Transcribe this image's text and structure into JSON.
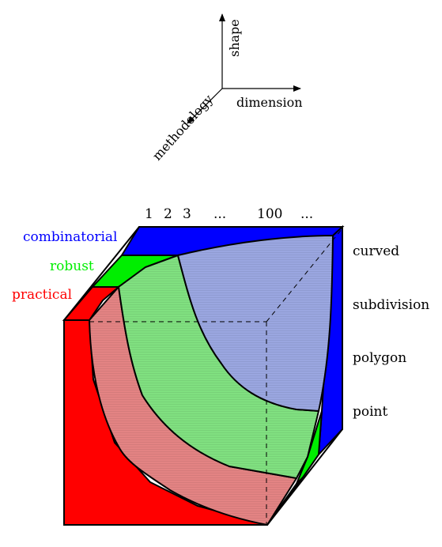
{
  "axes": {
    "shape": "shape",
    "dimension": "dimension",
    "methodology": "methodology"
  },
  "dimension_ticks": [
    "1",
    "2",
    "3",
    "...",
    "100",
    "..."
  ],
  "methodology_levels": [
    {
      "label": "combinatorial",
      "color": "#0000ff"
    },
    {
      "label": "robust",
      "color": "#00ee00"
    },
    {
      "label": "practical",
      "color": "#ff0000"
    }
  ],
  "shape_levels": [
    "curved",
    "subdivision",
    "polygon",
    "point"
  ],
  "region_colors": {
    "combinatorial_fill": "#9aa6e0",
    "robust_fill": "#80e080",
    "practical_fill": "#e38383",
    "cube_front": "#ff0000",
    "cube_side": "#0000ff"
  }
}
